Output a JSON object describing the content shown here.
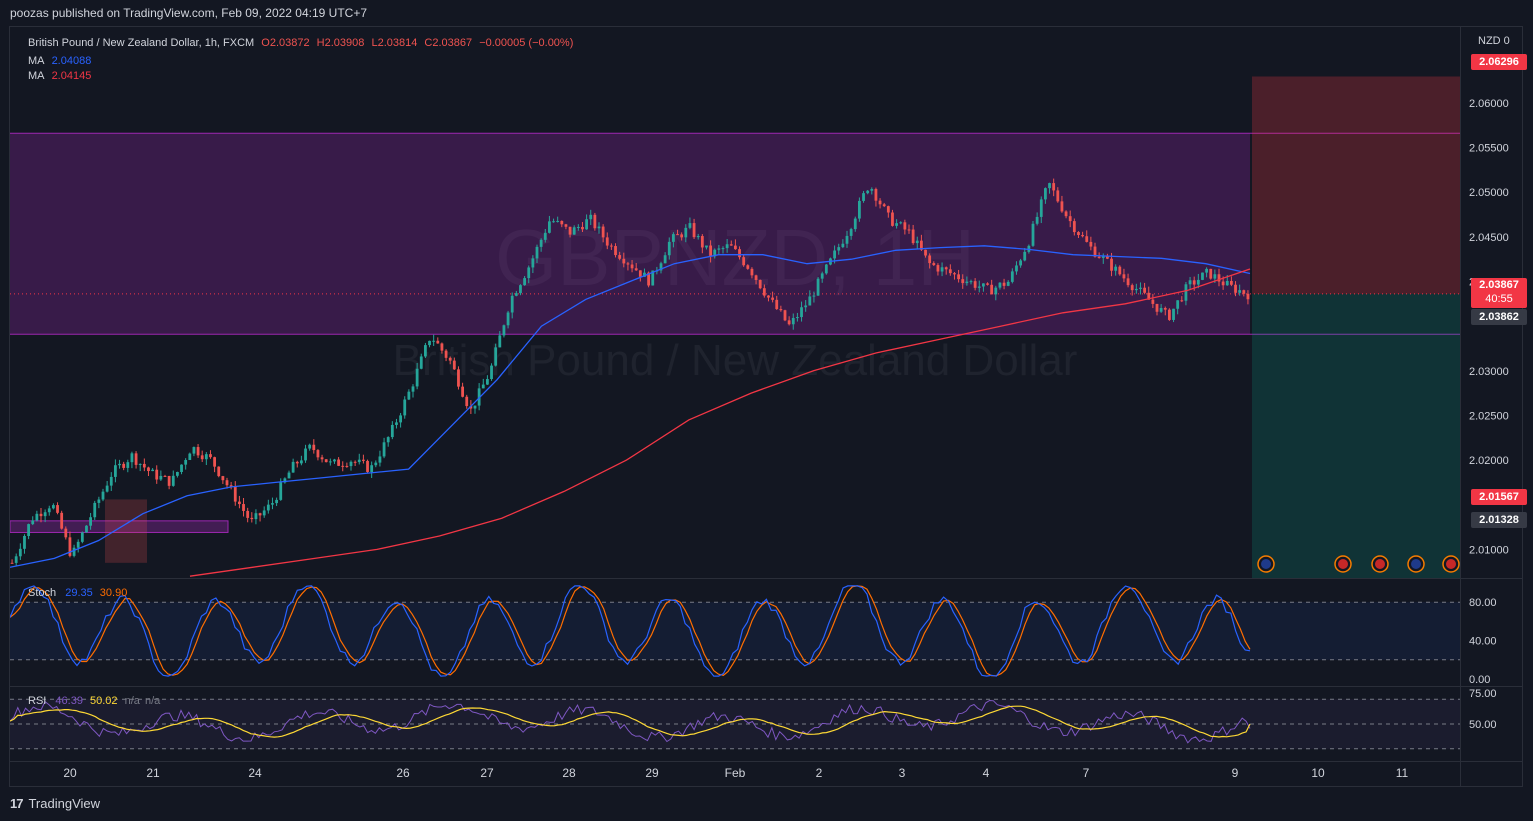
{
  "header": {
    "published_text": "poozas published on TradingView.com, Feb 09, 2022 04:19 UTC+7"
  },
  "legend": {
    "symbol": "British Pound / New Zealand Dollar, 1h, FXCM",
    "open": "O2.03872",
    "high": "H2.03908",
    "low": "L2.03814",
    "close": "C2.03867",
    "change": "−0.00005 (−0.00%)",
    "ma1_label": "MA",
    "ma1_value": "2.04088",
    "ma2_label": "MA",
    "ma2_value": "2.04145"
  },
  "watermark": {
    "ticker": "GBPNZD, 1H",
    "name": "British Pound / New Zealand Dollar"
  },
  "axis": {
    "currency": "NZD",
    "zero_label": "0",
    "price_ticks": [
      "2.06000",
      "2.05500",
      "2.05000",
      "2.04500",
      "2.04000",
      "2.03000",
      "2.02500",
      "2.02000",
      "2.01000"
    ],
    "stoch_ticks": [
      "80.00",
      "40.00",
      "0.00"
    ],
    "rsi_ticks": [
      "75.00",
      "50.00"
    ],
    "time_labels": [
      "20",
      "21",
      "24",
      "26",
      "27",
      "28",
      "29",
      "Feb",
      "2",
      "3",
      "4",
      "7",
      "9",
      "10",
      "11"
    ]
  },
  "price_labels": {
    "target": "2.06296",
    "current": "2.03867",
    "countdown": "40:55",
    "entry": "2.03862",
    "stop": "2.01567",
    "level": "2.01328"
  },
  "indicators": {
    "stoch_label": "Stoch",
    "stoch_k": "29.35",
    "stoch_d": "30.90",
    "rsi_label": "RSI",
    "rsi_value": "46.39",
    "rsi_ma": "50.02",
    "rsi_na1": "n/a",
    "rsi_na2": "n/a"
  },
  "colors": {
    "bull": "#26a69a",
    "bear": "#ef5350",
    "ma_fast": "#2962ff",
    "ma_slow": "#f23645",
    "zone": "#9c27b0",
    "stoch_k": "#2962ff",
    "stoch_d": "#ff6d00",
    "rsi": "#7e57c2",
    "rsi_ma": "#fdd835"
  },
  "footer": {
    "brand": "TradingView"
  },
  "chart_data": {
    "type": "candlestick",
    "title": "British Pound / New Zealand Dollar, 1h, FXCM",
    "ylim": [
      2.0068,
      2.0685
    ],
    "x": [
      "20",
      "21",
      "24",
      "26",
      "27",
      "28",
      "29",
      "Feb",
      "2",
      "3",
      "4",
      "7",
      "9"
    ],
    "close_path": [
      2.0085,
      2.0135,
      2.0152,
      2.0092,
      2.014,
      2.0185,
      2.0205,
      2.0185,
      2.0175,
      2.0215,
      2.02,
      2.0165,
      2.013,
      2.015,
      2.019,
      2.0215,
      2.0195,
      2.02,
      2.019,
      2.023,
      2.028,
      2.034,
      2.031,
      2.0255,
      2.03,
      2.038,
      2.042,
      2.047,
      2.0455,
      2.047,
      2.044,
      2.042,
      2.04,
      2.0445,
      2.046,
      2.043,
      2.044,
      2.0415,
      2.038,
      2.035,
      2.038,
      2.042,
      2.046,
      2.051,
      2.047,
      2.0455,
      2.042,
      2.041,
      2.04,
      2.039,
      2.04,
      2.0445,
      2.051,
      2.047,
      2.044,
      2.042,
      2.04,
      2.038,
      2.036,
      2.0395,
      2.041,
      2.0395,
      2.0386
    ],
    "ma_fast": [
      2.008,
      2.009,
      2.011,
      2.014,
      2.016,
      2.017,
      2.0175,
      2.018,
      2.0185,
      2.019,
      2.024,
      2.029,
      2.035,
      2.038,
      2.04,
      2.042,
      2.043,
      2.043,
      2.042,
      2.0425,
      2.0435,
      2.0438,
      2.044,
      2.0436,
      2.043,
      2.0428,
      2.0426,
      2.042,
      2.0409
    ],
    "ma_slow": [
      2.007,
      2.008,
      2.009,
      2.01,
      2.0115,
      2.0135,
      2.0165,
      2.02,
      2.0245,
      2.0275,
      2.03,
      2.032,
      2.0335,
      2.035,
      2.0365,
      2.0375,
      2.039,
      2.0414
    ],
    "zone": [
      2.0341,
      2.0566
    ],
    "long_position": {
      "entry": 2.03862,
      "target": 2.06296,
      "stop": 2.01567
    },
    "stochastic": {
      "k": 29.35,
      "d": 30.9,
      "upper": 80,
      "lower": 20,
      "ylim": [
        0,
        100
      ]
    },
    "rsi": {
      "value": 46.39,
      "ma": 50.02,
      "upper": 70,
      "lower": 30,
      "ylim": [
        25,
        75
      ]
    }
  }
}
